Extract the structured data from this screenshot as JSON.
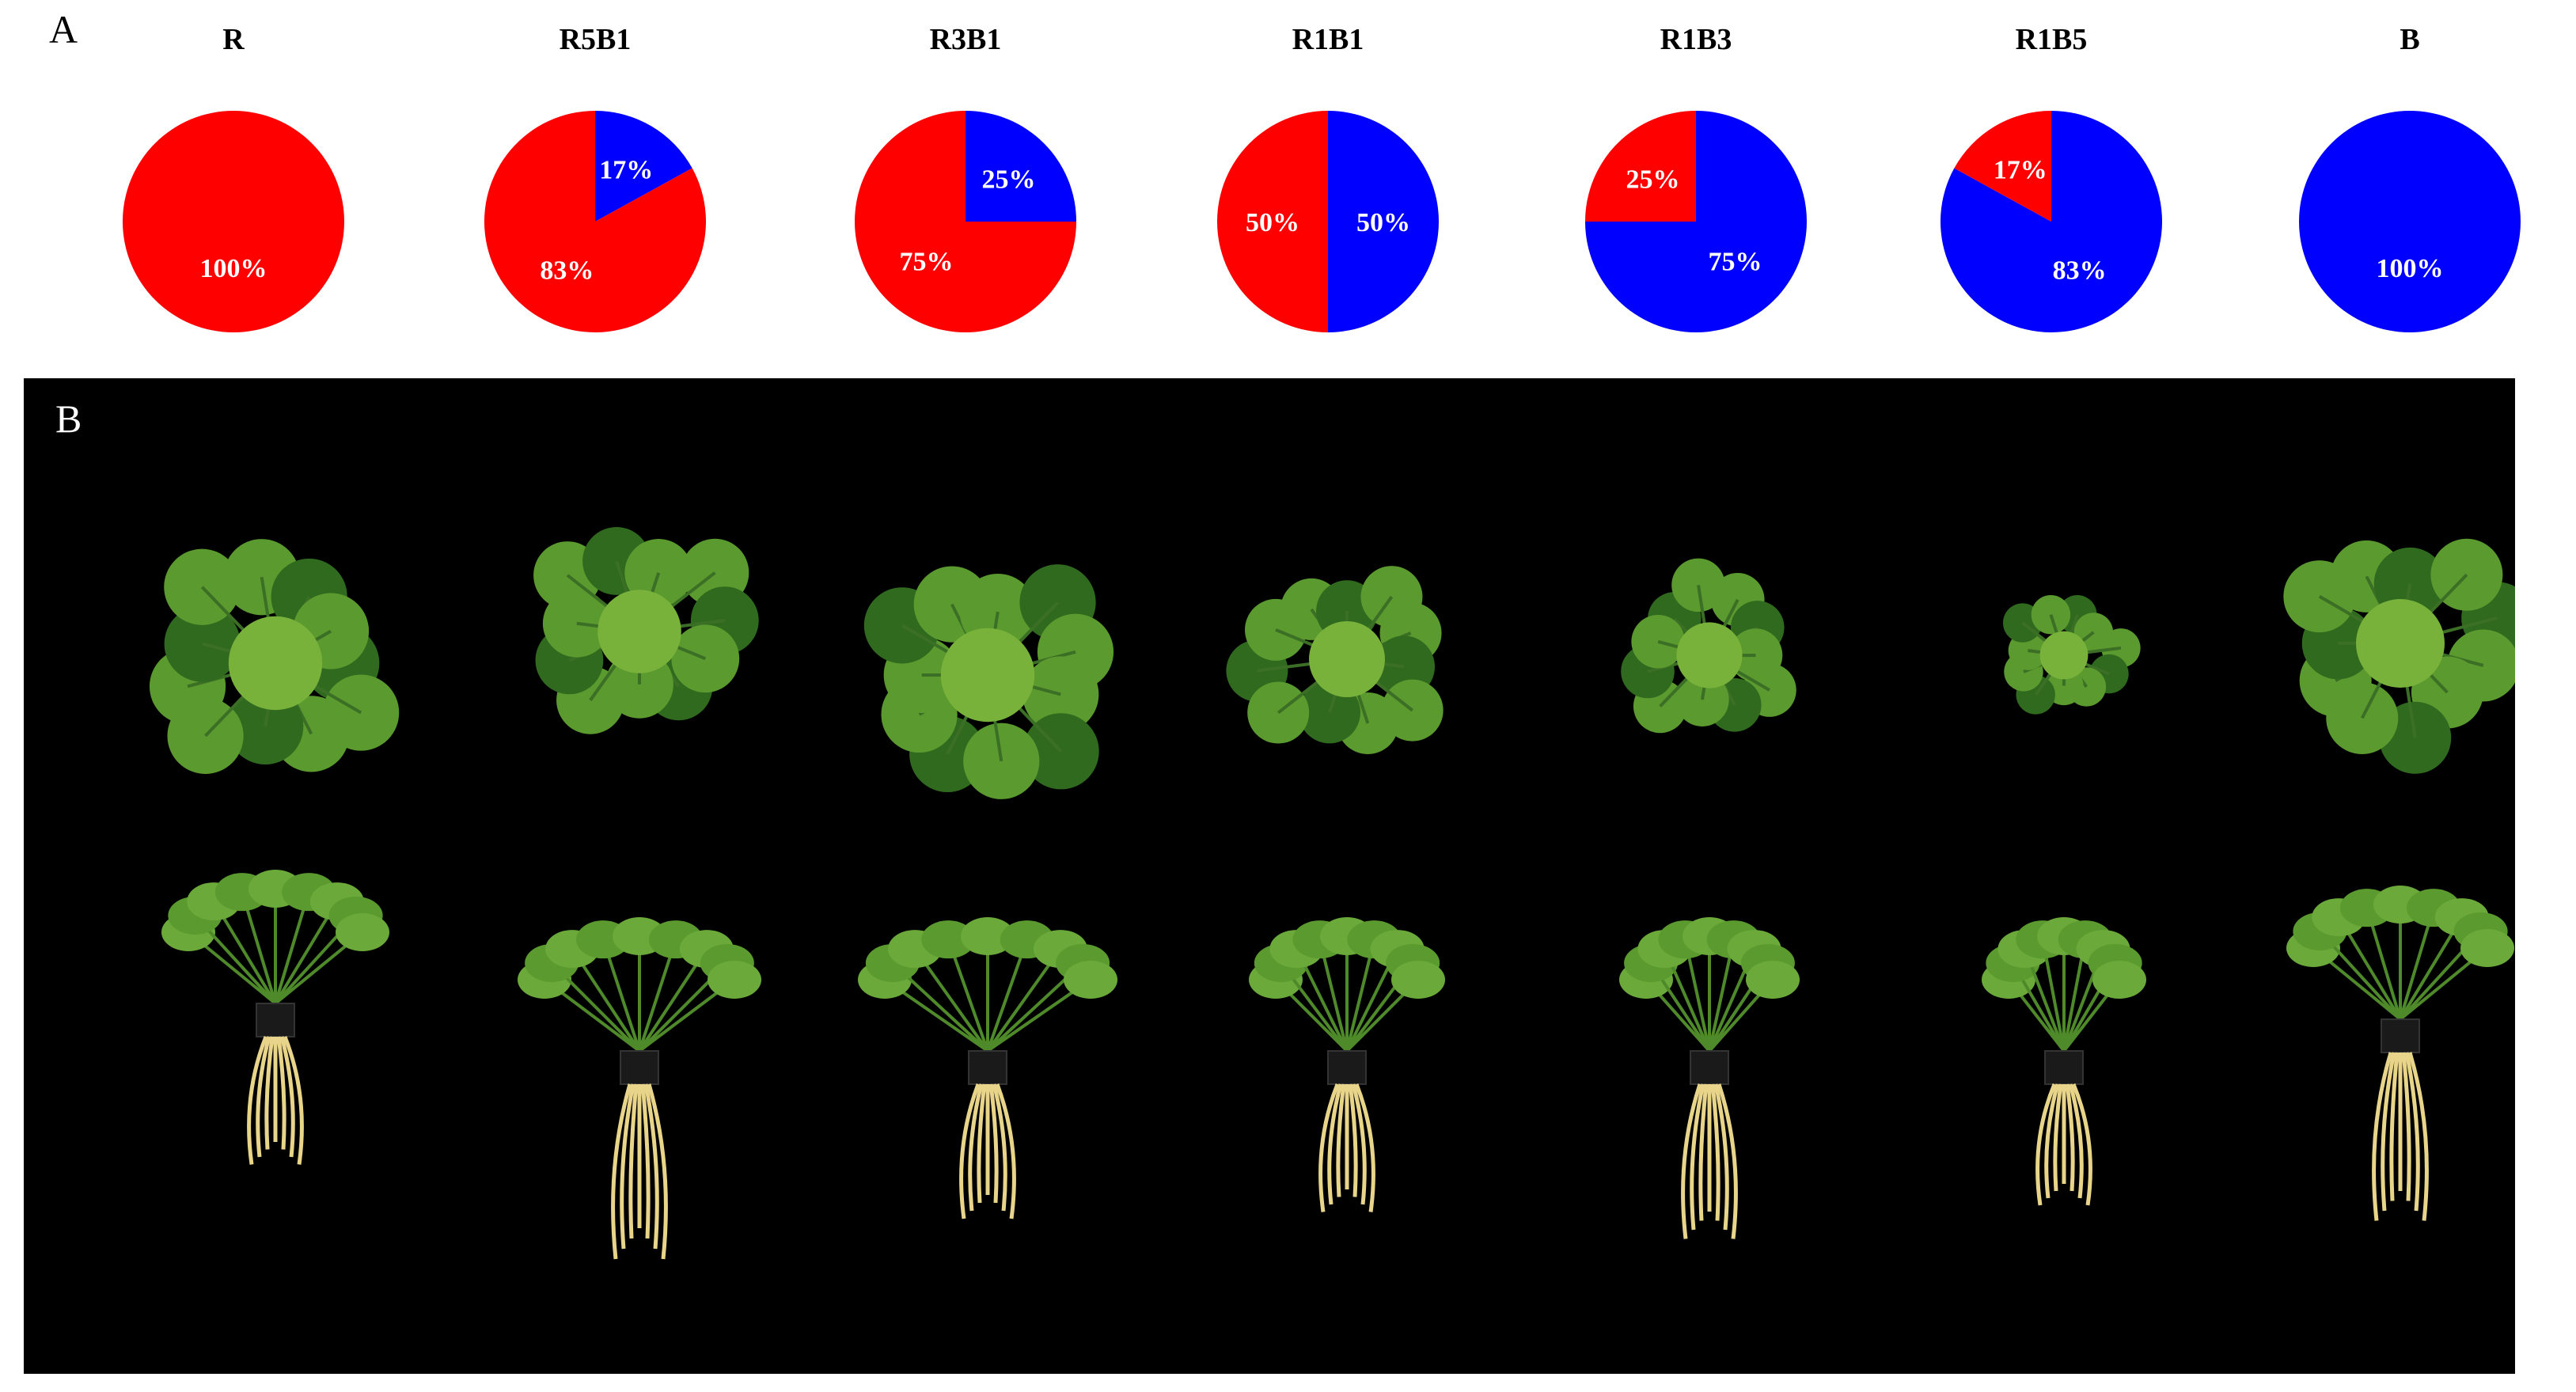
{
  "panel_a": {
    "letter": "A"
  },
  "panel_b": {
    "letter": "B"
  },
  "colors": {
    "red": "#ff0000",
    "blue": "#0000ff",
    "leaf": "#5a9a2e",
    "leaf_dark": "#2f6a1f",
    "root": "#e8d58a"
  },
  "chart_data": {
    "type": "pie",
    "slice_colors": [
      "#ff0000",
      "#0000ff"
    ],
    "charts": [
      {
        "title": "R",
        "values": [
          100,
          0
        ],
        "labels": [
          "100%",
          ""
        ]
      },
      {
        "title": "R5B1",
        "values": [
          83,
          17
        ],
        "labels": [
          "83%",
          "17%"
        ]
      },
      {
        "title": "R3B1",
        "values": [
          75,
          25
        ],
        "labels": [
          "75%",
          "25%"
        ]
      },
      {
        "title": "R1B1",
        "values": [
          50,
          50
        ],
        "labels": [
          "50%",
          "50%"
        ]
      },
      {
        "title": "R1B3",
        "values": [
          25,
          75
        ],
        "labels": [
          "25%",
          "75%"
        ]
      },
      {
        "title": "R1B5",
        "values": [
          17,
          83
        ],
        "labels": [
          "17%",
          "83%"
        ]
      },
      {
        "title": "B",
        "values": [
          0,
          100
        ],
        "labels": [
          "",
          "100%"
        ]
      }
    ]
  }
}
